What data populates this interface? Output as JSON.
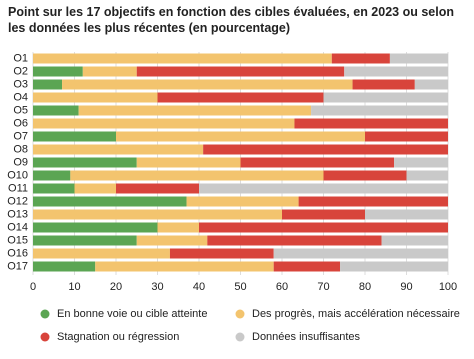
{
  "chart_data": {
    "type": "stacked-barh",
    "title": "Point sur les 17 objectifs en fonction des cibles évaluées, en 2023 ou selon les données les plus récentes (en pourcentage)",
    "categories": [
      "O1",
      "O2",
      "O3",
      "O4",
      "O5",
      "O6",
      "O7",
      "O8",
      "O9",
      "O10",
      "O11",
      "O12",
      "O13",
      "O14",
      "O15",
      "O16",
      "O17"
    ],
    "series": [
      {
        "name": "En bonne voie ou cible atteinte",
        "color": "#5ba553",
        "values": [
          0,
          12,
          7,
          0,
          11,
          0,
          20,
          0,
          25,
          9,
          10,
          37,
          0,
          30,
          25,
          0,
          15
        ]
      },
      {
        "name": "Des progrès, mais accélération nécessaire",
        "color": "#f3c46e",
        "values": [
          72,
          13,
          70,
          30,
          56,
          63,
          60,
          41,
          25,
          61,
          10,
          27,
          60,
          10,
          17,
          33,
          43
        ]
      },
      {
        "name": "Stagnation ou régression",
        "color": "#d8443b",
        "values": [
          14,
          50,
          15,
          40,
          0,
          37,
          20,
          59,
          37,
          20,
          20,
          36,
          20,
          60,
          42,
          25,
          16
        ]
      },
      {
        "name": "Données insuffisantes",
        "color": "#c9c9c9",
        "values": [
          14,
          25,
          8,
          30,
          33,
          0,
          0,
          0,
          13,
          10,
          60,
          0,
          20,
          0,
          16,
          42,
          26
        ]
      }
    ],
    "xlim": [
      0,
      100
    ],
    "xticks": [
      0,
      10,
      20,
      30,
      40,
      50,
      60,
      70,
      80,
      90,
      100
    ],
    "grid": true
  }
}
